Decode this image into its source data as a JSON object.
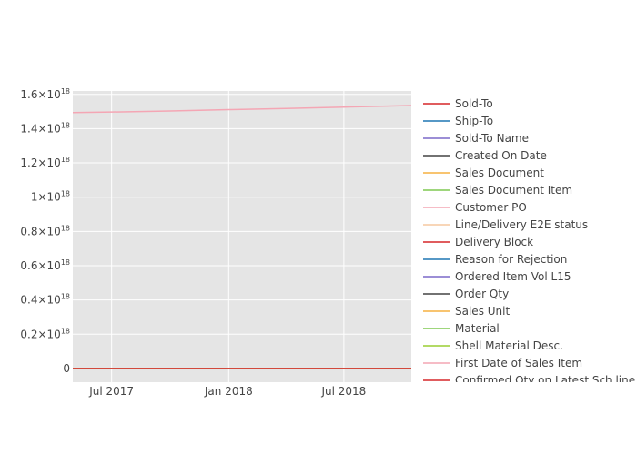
{
  "chart_data": {
    "type": "line",
    "x_axis": {
      "type": "date",
      "range": [
        "2017-05-01",
        "2018-10-15"
      ],
      "tick_values": [
        "2017-07-01",
        "2018-01-01",
        "2018-07-01"
      ],
      "tick_labels": [
        "Jul 2017",
        "Jan 2018",
        "Jul 2018"
      ]
    },
    "y_axis": {
      "range": [
        -8e+16,
        1.62e+18
      ],
      "tick_values": [
        0,
        2e+17,
        4e+17,
        6e+17,
        8e+17,
        1e+18,
        1.2e+18,
        1.4e+18,
        1.6e+18
      ],
      "tick_labels": [
        {
          "base": "0",
          "exp": ""
        },
        {
          "base": "0.2×10",
          "exp": "18"
        },
        {
          "base": "0.4×10",
          "exp": "18"
        },
        {
          "base": "0.6×10",
          "exp": "18"
        },
        {
          "base": "0.8×10",
          "exp": "18"
        },
        {
          "base": "1×10",
          "exp": "18"
        },
        {
          "base": "1.2×10",
          "exp": "18"
        },
        {
          "base": "1.4×10",
          "exp": "18"
        },
        {
          "base": "1.6×10",
          "exp": "18"
        }
      ]
    },
    "grid": true,
    "legend_position": "right",
    "series": [
      {
        "name": "Sold-To",
        "color": "#d62728",
        "x": [
          "2017-05-01",
          "2018-10-15"
        ],
        "y": [
          0,
          0
        ]
      },
      {
        "name": "Ship-To",
        "color": "#1f77b4",
        "x": [
          "2017-05-01",
          "2018-10-15"
        ],
        "y": [
          0,
          0
        ]
      },
      {
        "name": "Sold-To Name",
        "color": "#7b68c8",
        "x": [
          "2017-05-01",
          "2018-10-15"
        ],
        "y": [
          0,
          0
        ]
      },
      {
        "name": "Created On Date",
        "color": "#444444",
        "x": [
          "2017-05-01",
          "2018-10-15"
        ],
        "y": [
          0,
          0
        ]
      },
      {
        "name": "Sales Document",
        "color": "#f5b041",
        "x": [
          "2017-05-01",
          "2018-10-15"
        ],
        "y": [
          0,
          0
        ]
      },
      {
        "name": "Sales Document Item",
        "color": "#7ec850",
        "x": [
          "2017-05-01",
          "2018-10-15"
        ],
        "y": [
          0,
          0
        ]
      },
      {
        "name": "Customer PO",
        "color": "#f4a6b4",
        "x": [
          "2017-05-01",
          "2017-07-01",
          "2017-10-01",
          "2018-01-01",
          "2018-04-01",
          "2018-07-01",
          "2018-10-15"
        ],
        "y": [
          1.494e+18,
          1.497e+18,
          1.503e+18,
          1.511e+18,
          1.518e+18,
          1.526e+18,
          1.535e+18
        ]
      },
      {
        "name": "Line/Delivery E2E status",
        "color": "#f5c9a0",
        "x": [
          "2017-05-01",
          "2018-10-15"
        ],
        "y": [
          0,
          0
        ]
      },
      {
        "name": "Delivery Block",
        "color": "#d62728",
        "x": [
          "2017-05-01",
          "2018-10-15"
        ],
        "y": [
          0,
          0
        ]
      },
      {
        "name": "Reason for Rejection",
        "color": "#1f77b4",
        "x": [
          "2017-05-01",
          "2018-10-15"
        ],
        "y": [
          0,
          0
        ]
      },
      {
        "name": "Ordered Item Vol L15",
        "color": "#7b68c8",
        "x": [
          "2017-05-01",
          "2018-10-15"
        ],
        "y": [
          0,
          0
        ]
      },
      {
        "name": "Order Qty",
        "color": "#444444",
        "x": [
          "2017-05-01",
          "2018-10-15"
        ],
        "y": [
          0,
          0
        ]
      },
      {
        "name": "Sales Unit",
        "color": "#f5b041",
        "x": [
          "2017-05-01",
          "2018-10-15"
        ],
        "y": [
          0,
          0
        ]
      },
      {
        "name": "Material",
        "color": "#7ec850",
        "x": [
          "2017-05-01",
          "2018-10-15"
        ],
        "y": [
          0,
          0
        ]
      },
      {
        "name": "Shell Material Desc.",
        "color": "#9acd32",
        "x": [
          "2017-05-01",
          "2018-10-15"
        ],
        "y": [
          0,
          0
        ]
      },
      {
        "name": "First Date of Sales Item",
        "color": "#f4a6b4",
        "x": [
          "2017-05-01",
          "2018-10-15"
        ],
        "y": [
          0,
          0
        ]
      },
      {
        "name": "Confirmed Qty on Latest Sch line",
        "color": "#d62728",
        "x": [
          "2017-05-01",
          "2018-10-15"
        ],
        "y": [
          0,
          0
        ]
      }
    ]
  }
}
